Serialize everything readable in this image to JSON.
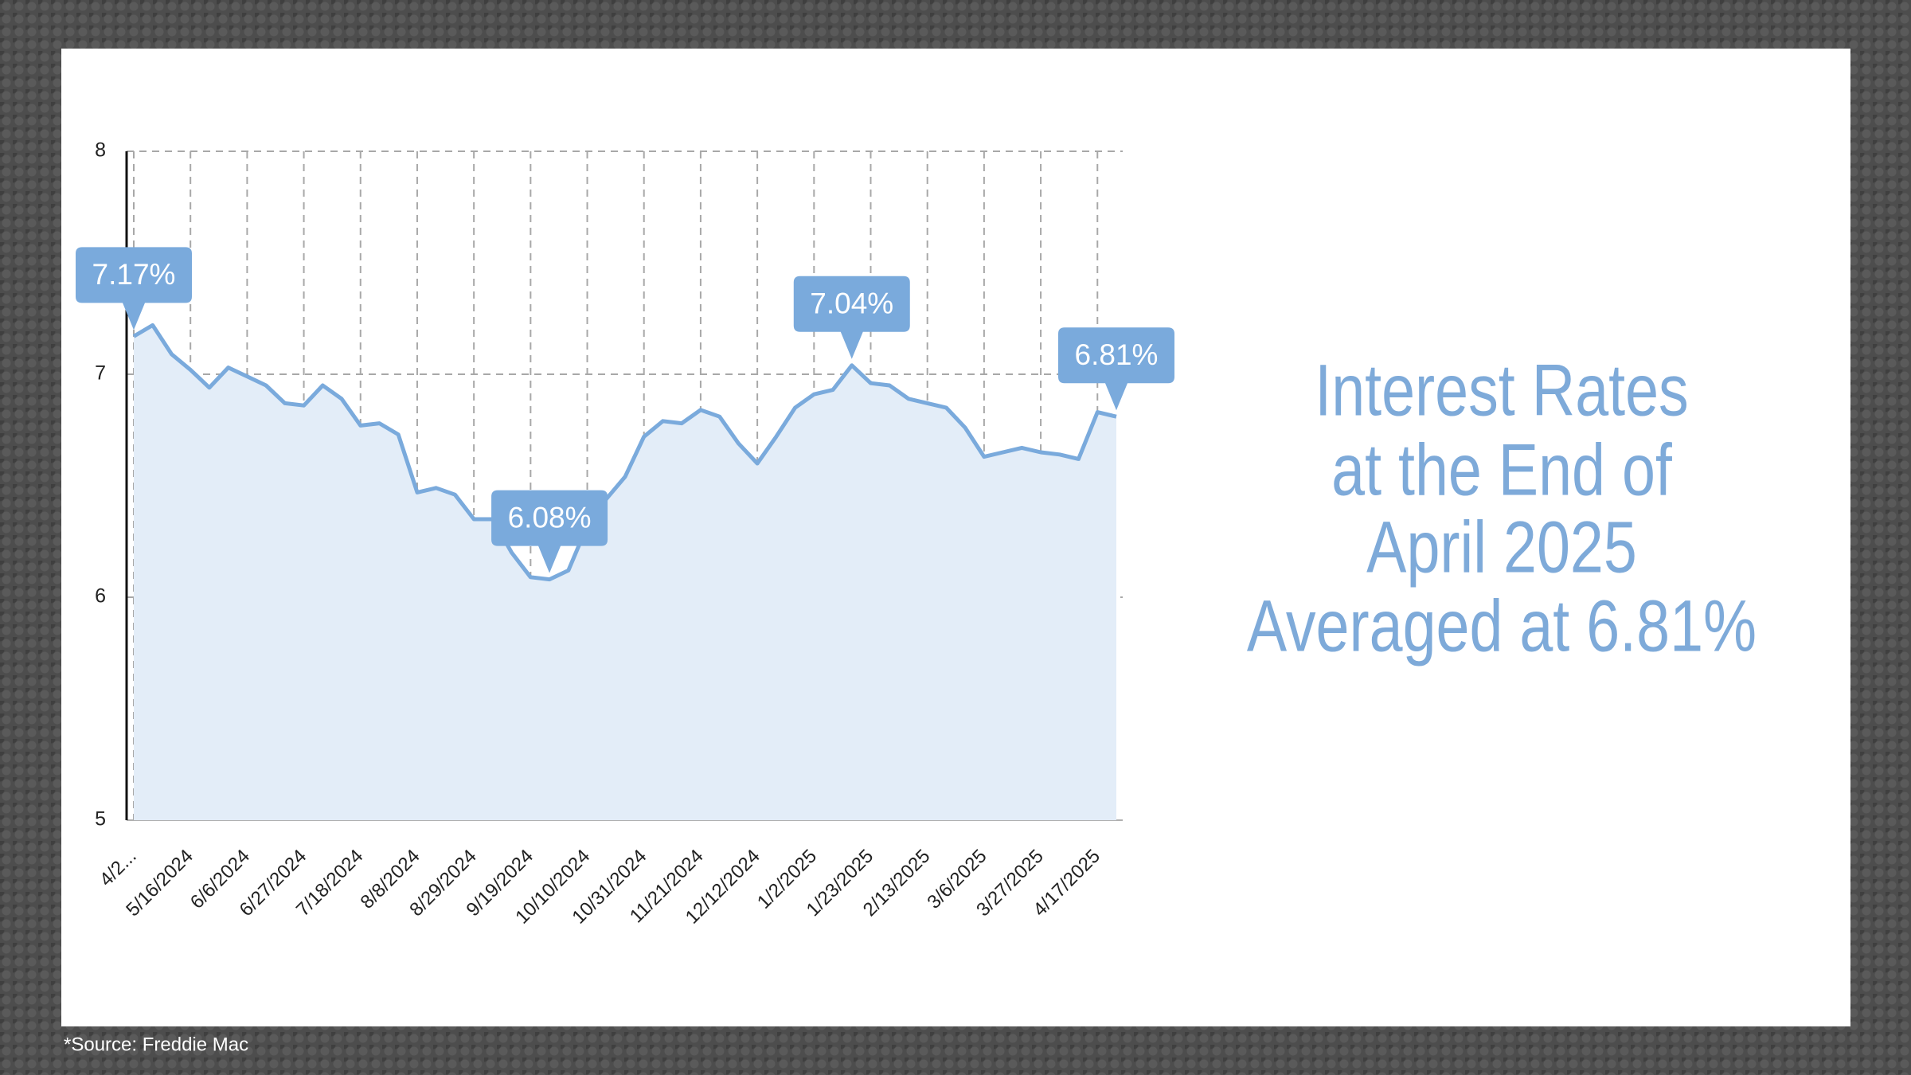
{
  "chart_data": {
    "type": "area",
    "title_lines": [
      "Interest Rates",
      "at the End of",
      "April 2025",
      "Averaged at 6.81%"
    ],
    "source": "*Source: Freddie Mac",
    "categories": [
      "4/2...",
      null,
      null,
      "5/16/2024",
      null,
      null,
      "6/6/2024",
      null,
      null,
      "6/27/2024",
      null,
      null,
      "7/18/2024",
      null,
      null,
      "8/8/2024",
      null,
      null,
      "8/29/2024",
      null,
      null,
      "9/19/2024",
      null,
      null,
      "10/10/2024",
      null,
      null,
      "10/31/2024",
      null,
      null,
      "11/21/2024",
      null,
      null,
      "12/12/2024",
      null,
      null,
      "1/2/2025",
      null,
      null,
      "1/23/2025",
      null,
      null,
      "2/13/2025",
      null,
      null,
      "3/6/2025",
      null,
      null,
      "3/27/2025",
      null,
      null,
      "4/17/2025",
      null
    ],
    "values": [
      7.17,
      7.22,
      7.09,
      7.02,
      6.94,
      7.03,
      6.99,
      6.95,
      6.87,
      6.86,
      6.95,
      6.89,
      6.77,
      6.78,
      6.73,
      6.47,
      6.49,
      6.46,
      6.35,
      6.35,
      6.2,
      6.09,
      6.08,
      6.12,
      6.32,
      6.44,
      6.54,
      6.72,
      6.79,
      6.78,
      6.84,
      6.81,
      6.69,
      6.6,
      6.72,
      6.85,
      6.91,
      6.93,
      7.04,
      6.96,
      6.95,
      6.89,
      6.87,
      6.85,
      6.76,
      6.63,
      6.65,
      6.67,
      6.65,
      6.64,
      6.62,
      6.83,
      6.81
    ],
    "value_labels": [
      "7.17%",
      null,
      null,
      null,
      null,
      null,
      null,
      null,
      null,
      null,
      null,
      null,
      null,
      null,
      null,
      null,
      null,
      null,
      null,
      null,
      null,
      null,
      "6.08%",
      null,
      null,
      null,
      null,
      null,
      null,
      null,
      null,
      null,
      null,
      null,
      null,
      null,
      null,
      null,
      "7.04%",
      null,
      null,
      null,
      null,
      null,
      null,
      null,
      null,
      null,
      null,
      null,
      null,
      null,
      "6.81%"
    ],
    "color": "#7aaadc",
    "fill_color": "#e3edf8",
    "ylim": [
      5,
      8
    ],
    "yticks": [
      5,
      6,
      7,
      8
    ],
    "grid": true
  }
}
